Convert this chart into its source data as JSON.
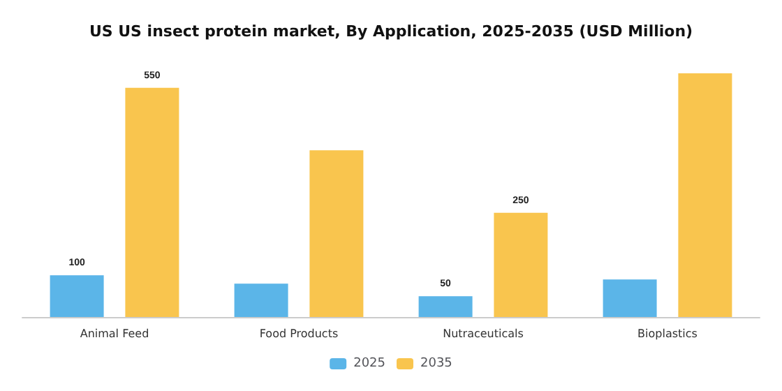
{
  "chart_data": {
    "type": "bar",
    "title": "US US insect protein market, By Application, 2025-2035 (USD Million)",
    "categories": [
      "Animal Feed",
      "Food Products",
      "Nutraceuticals",
      "Bioplastics"
    ],
    "series": [
      {
        "name": "2025",
        "color": "#5bb5e8",
        "values": [
          100,
          80,
          50,
          90
        ],
        "value_labels": [
          "100",
          null,
          "50",
          null
        ]
      },
      {
        "name": "2035",
        "color": "#f9c54e",
        "values": [
          550,
          400,
          250,
          585
        ],
        "value_labels": [
          "550",
          null,
          "250",
          null
        ]
      }
    ],
    "legend": "bottom",
    "grid": false
  }
}
